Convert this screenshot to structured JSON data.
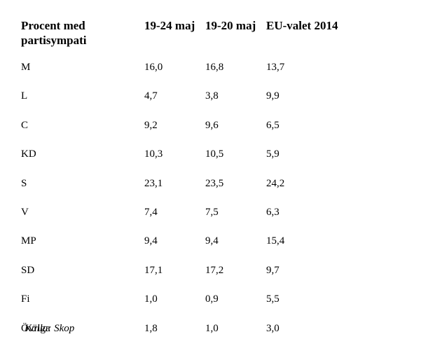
{
  "table": {
    "headers": [
      "Procent med partisympati",
      "19-24 maj",
      "19-20 maj",
      "EU-valet 2014"
    ],
    "rows": [
      [
        "M",
        "16,0",
        "16,8",
        "13,7"
      ],
      [
        "L",
        "4,7",
        "3,8",
        "9,9"
      ],
      [
        "C",
        "9,2",
        "9,6",
        "6,5"
      ],
      [
        "KD",
        "10,3",
        "10,5",
        "5,9"
      ],
      [
        "S",
        "23,1",
        "23,5",
        "24,2"
      ],
      [
        "V",
        "7,4",
        "7,5",
        "6,3"
      ],
      [
        "MP",
        "9,4",
        "9,4",
        "15,4"
      ],
      [
        "SD",
        "17,1",
        "17,2",
        "9,7"
      ],
      [
        "Fi",
        "1,0",
        "0,9",
        "5,5"
      ],
      [
        "Övriga",
        "1,8",
        "1,0",
        "3,0"
      ]
    ]
  },
  "source": "Källa: Skop"
}
